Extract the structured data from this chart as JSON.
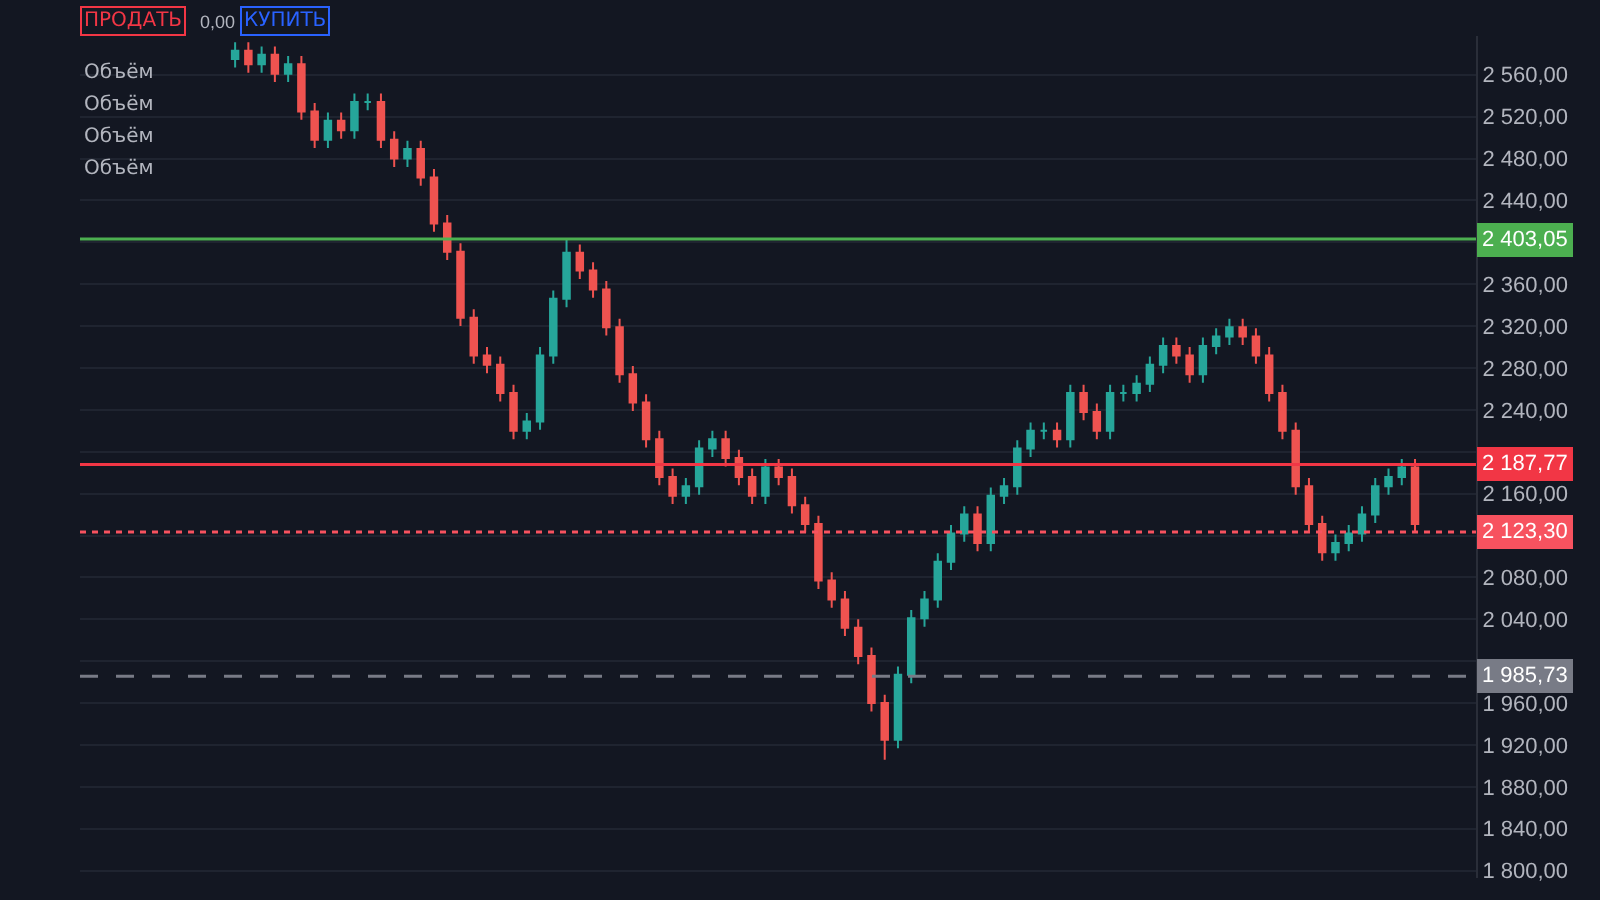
{
  "chart_data": {
    "type": "candlestick",
    "categories": [
      null,
      null,
      null,
      null,
      null,
      null,
      null,
      null,
      null,
      null,
      null,
      null,
      null,
      null,
      null,
      null,
      null,
      null,
      null,
      null,
      null,
      null,
      null,
      null,
      null,
      null,
      null,
      null,
      null,
      null,
      null,
      null,
      null,
      null,
      null,
      null,
      null,
      null,
      null,
      null,
      null,
      null,
      null,
      null,
      null,
      null,
      null,
      null,
      null,
      null,
      null,
      null,
      null,
      null,
      null,
      null,
      null,
      null,
      null,
      null,
      null,
      null,
      null,
      null,
      null,
      null,
      null,
      null,
      null,
      null,
      null,
      null,
      null,
      null,
      null,
      null,
      null,
      null,
      null,
      null,
      null,
      null,
      null,
      null,
      null,
      null,
      null,
      null,
      null,
      null
    ],
    "ohlc": [
      [
        2575,
        2591,
        2567,
        2583
      ],
      [
        2583,
        2591,
        2562,
        2570
      ],
      [
        2570,
        2587,
        2562,
        2579
      ],
      [
        2579,
        2587,
        2553,
        2561
      ],
      [
        2561,
        2578,
        2553,
        2570
      ],
      [
        2570,
        2578,
        2517,
        2525
      ],
      [
        2525,
        2533,
        2490,
        2498
      ],
      [
        2498,
        2524,
        2490,
        2516
      ],
      [
        2516,
        2524,
        2499,
        2507
      ],
      [
        2507,
        2542,
        2499,
        2534
      ],
      [
        2534,
        2542,
        2526,
        2534
      ],
      [
        2534,
        2542,
        2490,
        2498
      ],
      [
        2498,
        2506,
        2472,
        2480
      ],
      [
        2480,
        2497,
        2472,
        2489
      ],
      [
        2489,
        2497,
        2454,
        2462
      ],
      [
        2462,
        2470,
        2410,
        2418
      ],
      [
        2418,
        2426,
        2383,
        2391
      ],
      [
        2391,
        2399,
        2320,
        2328
      ],
      [
        2328,
        2336,
        2284,
        2292
      ],
      [
        2292,
        2300,
        2275,
        2283
      ],
      [
        2283,
        2291,
        2248,
        2256
      ],
      [
        2256,
        2264,
        2212,
        2220
      ],
      [
        2220,
        2237,
        2212,
        2229
      ],
      [
        2229,
        2300,
        2221,
        2292
      ],
      [
        2292,
        2354,
        2284,
        2346
      ],
      [
        2346,
        2403,
        2338,
        2390
      ],
      [
        2390,
        2398,
        2365,
        2373
      ],
      [
        2373,
        2381,
        2347,
        2355
      ],
      [
        2355,
        2363,
        2311,
        2319
      ],
      [
        2319,
        2327,
        2266,
        2274
      ],
      [
        2274,
        2282,
        2239,
        2247
      ],
      [
        2247,
        2255,
        2204,
        2212
      ],
      [
        2212,
        2220,
        2168,
        2176
      ],
      [
        2176,
        2184,
        2150,
        2158
      ],
      [
        2158,
        2175,
        2150,
        2167
      ],
      [
        2167,
        2211,
        2159,
        2203
      ],
      [
        2203,
        2220,
        2195,
        2212
      ],
      [
        2212,
        2220,
        2186,
        2194
      ],
      [
        2194,
        2202,
        2168,
        2176
      ],
      [
        2176,
        2184,
        2150,
        2158
      ],
      [
        2158,
        2193,
        2150,
        2185
      ],
      [
        2185,
        2193,
        2168,
        2176
      ],
      [
        2176,
        2184,
        2141,
        2149
      ],
      [
        2149,
        2157,
        2123,
        2131
      ],
      [
        2131,
        2139,
        2069,
        2077
      ],
      [
        2077,
        2085,
        2051,
        2059
      ],
      [
        2059,
        2067,
        2024,
        2032
      ],
      [
        2032,
        2040,
        1997,
        2005
      ],
      [
        2005,
        2013,
        1952,
        1960
      ],
      [
        1960,
        1968,
        1906,
        1925
      ],
      [
        1925,
        1995,
        1917,
        1987
      ],
      [
        1987,
        2049,
        1979,
        2041
      ],
      [
        2041,
        2067,
        2033,
        2059
      ],
      [
        2059,
        2103,
        2051,
        2095
      ],
      [
        2095,
        2130,
        2087,
        2122
      ],
      [
        2122,
        2148,
        2114,
        2140
      ],
      [
        2140,
        2148,
        2105,
        2113
      ],
      [
        2113,
        2166,
        2105,
        2158
      ],
      [
        2158,
        2175,
        2150,
        2167
      ],
      [
        2167,
        2211,
        2159,
        2203
      ],
      [
        2203,
        2228,
        2195,
        2220
      ],
      [
        2220,
        2228,
        2212,
        2220
      ],
      [
        2220,
        2228,
        2204,
        2212
      ],
      [
        2212,
        2264,
        2204,
        2256
      ],
      [
        2256,
        2264,
        2230,
        2238
      ],
      [
        2238,
        2246,
        2212,
        2220
      ],
      [
        2220,
        2264,
        2212,
        2256
      ],
      [
        2256,
        2264,
        2248,
        2256
      ],
      [
        2256,
        2273,
        2248,
        2265
      ],
      [
        2265,
        2291,
        2257,
        2283
      ],
      [
        2283,
        2309,
        2275,
        2301
      ],
      [
        2301,
        2309,
        2284,
        2292
      ],
      [
        2292,
        2300,
        2266,
        2274
      ],
      [
        2274,
        2309,
        2266,
        2301
      ],
      [
        2301,
        2318,
        2293,
        2310
      ],
      [
        2310,
        2327,
        2302,
        2319
      ],
      [
        2319,
        2327,
        2302,
        2310
      ],
      [
        2310,
        2318,
        2284,
        2292
      ],
      [
        2292,
        2300,
        2248,
        2256
      ],
      [
        2256,
        2264,
        2212,
        2220
      ],
      [
        2220,
        2228,
        2159,
        2167
      ],
      [
        2167,
        2175,
        2123,
        2131
      ],
      [
        2131,
        2139,
        2096,
        2104
      ],
      [
        2104,
        2121,
        2096,
        2113
      ],
      [
        2113,
        2130,
        2105,
        2122
      ],
      [
        2122,
        2148,
        2114,
        2140
      ],
      [
        2140,
        2175,
        2132,
        2167
      ],
      [
        2167,
        2184,
        2159,
        2176
      ],
      [
        2176,
        2193,
        2168,
        2185
      ],
      [
        2185,
        2193,
        2123,
        2131
      ]
    ],
    "ylim": [
      1793,
      2597
    ],
    "yticks": [
      {
        "value": 1800,
        "label": "1 800,00"
      },
      {
        "value": 1840,
        "label": "1 840,00"
      },
      {
        "value": 1880,
        "label": "1 880,00"
      },
      {
        "value": 1920,
        "label": "1 920,00"
      },
      {
        "value": 1960,
        "label": "1 960,00"
      },
      {
        "value": 2000,
        "label": null
      },
      {
        "value": 2040,
        "label": "2 040,00"
      },
      {
        "value": 2080,
        "label": "2 080,00"
      },
      {
        "value": 2120,
        "label": null
      },
      {
        "value": 2160,
        "label": "2 160,00"
      },
      {
        "value": 2200,
        "label": null
      },
      {
        "value": 2240,
        "label": "2 240,00"
      },
      {
        "value": 2280,
        "label": "2 280,00"
      },
      {
        "value": 2320,
        "label": "2 320,00"
      },
      {
        "value": 2360,
        "label": "2 360,00"
      },
      {
        "value": 2400,
        "label": null
      },
      {
        "value": 2440,
        "label": "2 440,00"
      },
      {
        "value": 2480,
        "label": "2 480,00"
      },
      {
        "value": 2520,
        "label": "2 520,00"
      },
      {
        "value": 2560,
        "label": "2 560,00"
      }
    ],
    "tick_labels": "y",
    "grid": true,
    "ref_lines": [
      {
        "axis": "y",
        "value": 2403.05,
        "label": "2 403,05",
        "color": "#4caf50",
        "line_style": "solid"
      },
      {
        "axis": "y",
        "value": 2187.77,
        "label": "2 187,77",
        "color": "#f23645",
        "line_style": "solid"
      },
      {
        "axis": "y",
        "value": 2123.3,
        "label": "2 123,30",
        "color": "#f7525f",
        "line_style": "dotted"
      },
      {
        "axis": "y",
        "value": 1985.73,
        "label": "1 985,73",
        "color": "#787b86",
        "line_style": "dashed"
      }
    ],
    "annotations": [
      "ПРОДАТЬ",
      "КУПИТЬ",
      "0,00",
      "Объём",
      "Объём",
      "Объём",
      "Объём"
    ]
  }
}
